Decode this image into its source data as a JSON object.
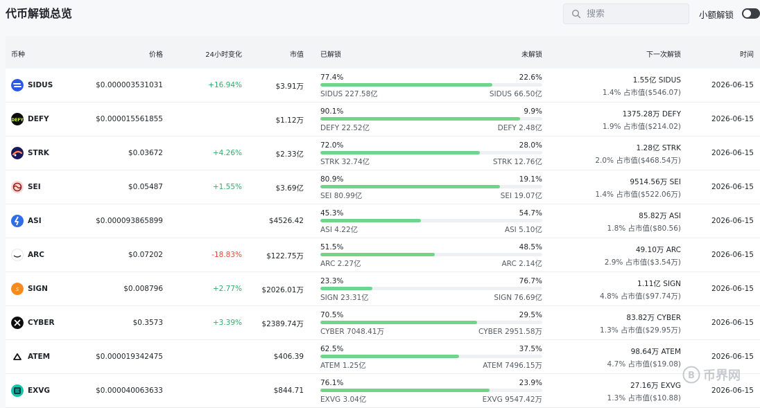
{
  "page": {
    "title": "代币解锁总览"
  },
  "search": {
    "placeholder": "搜索",
    "icon": "search-icon"
  },
  "toggle": {
    "label": "小额解锁",
    "on": false
  },
  "colors": {
    "positive": "#2fae6b",
    "negative": "#e2473f",
    "progress": "#6fd58b",
    "header_bg": "#f3f4f6"
  },
  "table": {
    "headers": {
      "coin": "币种",
      "price": "价格",
      "change": "24小时变化",
      "mcap": "市值",
      "unlocked": "已解锁",
      "locked": "未解锁",
      "next": "下一次解锁",
      "time": "时间"
    },
    "rows": [
      {
        "symbol": "SIDUS",
        "icon": "sidus-logo-icon",
        "price": "$0.000003531031",
        "change": "+16.94%",
        "change_dir": "pos",
        "mcap": "$3.91万",
        "unlocked_pct": "77.4%",
        "unlocked_fraction": 0.774,
        "locked_pct": "22.6%",
        "unlocked_amt": "SIDUS 227.58亿",
        "locked_amt": "SIDUS 66.50亿",
        "next_amt": "1.55亿 SIDUS",
        "next_pct": "1.4% 占市值($546.07)",
        "time": "2026-06-15"
      },
      {
        "symbol": "DEFY",
        "icon": "defy-logo-icon",
        "price": "$0.000015561855",
        "change": "",
        "change_dir": "none",
        "mcap": "$1.12万",
        "unlocked_pct": "90.1%",
        "unlocked_fraction": 0.901,
        "locked_pct": "9.9%",
        "unlocked_amt": "DEFY 22.52亿",
        "locked_amt": "DEFY 2.48亿",
        "next_amt": "1375.28万 DEFY",
        "next_pct": "1.9% 占市值($214.02)",
        "time": "2026-06-15"
      },
      {
        "symbol": "STRK",
        "icon": "strk-logo-icon",
        "price": "$0.03672",
        "change": "+4.26%",
        "change_dir": "pos",
        "mcap": "$2.33亿",
        "unlocked_pct": "72.0%",
        "unlocked_fraction": 0.72,
        "locked_pct": "28.0%",
        "unlocked_amt": "STRK 32.74亿",
        "locked_amt": "STRK 12.76亿",
        "next_amt": "1.28亿 STRK",
        "next_pct": "2.0% 占市值($468.54万)",
        "time": "2026-06-15"
      },
      {
        "symbol": "SEI",
        "icon": "sei-logo-icon",
        "price": "$0.05487",
        "change": "+1.55%",
        "change_dir": "pos",
        "mcap": "$3.69亿",
        "unlocked_pct": "80.9%",
        "unlocked_fraction": 0.809,
        "locked_pct": "19.1%",
        "unlocked_amt": "SEI 80.99亿",
        "locked_amt": "SEI 19.07亿",
        "next_amt": "9514.56万 SEI",
        "next_pct": "1.4% 占市值($522.06万)",
        "time": "2026-06-15"
      },
      {
        "symbol": "ASI",
        "icon": "asi-logo-icon",
        "price": "$0.000093865899",
        "change": "",
        "change_dir": "none",
        "mcap": "$4526.42",
        "unlocked_pct": "45.3%",
        "unlocked_fraction": 0.453,
        "locked_pct": "54.7%",
        "unlocked_amt": "ASI 4.22亿",
        "locked_amt": "ASI 5.10亿",
        "next_amt": "85.82万 ASI",
        "next_pct": "1.8% 占市值($80.56)",
        "time": "2026-06-15"
      },
      {
        "symbol": "ARC",
        "icon": "arc-logo-icon",
        "price": "$0.07202",
        "change": "-18.83%",
        "change_dir": "neg",
        "mcap": "$122.75万",
        "unlocked_pct": "51.5%",
        "unlocked_fraction": 0.515,
        "locked_pct": "48.5%",
        "unlocked_amt": "ARC 2.27亿",
        "locked_amt": "ARC 2.14亿",
        "next_amt": "49.10万 ARC",
        "next_pct": "2.9% 占市值($3.54万)",
        "time": "2026-06-15"
      },
      {
        "symbol": "SIGN",
        "icon": "sign-logo-icon",
        "price": "$0.008796",
        "change": "+2.77%",
        "change_dir": "pos",
        "mcap": "$2026.01万",
        "unlocked_pct": "23.3%",
        "unlocked_fraction": 0.233,
        "locked_pct": "76.7%",
        "unlocked_amt": "SIGN 23.31亿",
        "locked_amt": "SIGN 76.69亿",
        "next_amt": "1.11亿 SIGN",
        "next_pct": "4.8% 占市值($97.74万)",
        "time": "2026-06-15"
      },
      {
        "symbol": "CYBER",
        "icon": "cyber-logo-icon",
        "price": "$0.3573",
        "change": "+3.39%",
        "change_dir": "pos",
        "mcap": "$2389.74万",
        "unlocked_pct": "70.5%",
        "unlocked_fraction": 0.705,
        "locked_pct": "29.5%",
        "unlocked_amt": "CYBER 7048.41万",
        "locked_amt": "CYBER 2951.58万",
        "next_amt": "83.82万 CYBER",
        "next_pct": "1.3% 占市值($29.95万)",
        "time": "2026-06-15"
      },
      {
        "symbol": "ATEM",
        "icon": "atem-logo-icon",
        "price": "$0.000019342475",
        "change": "",
        "change_dir": "none",
        "mcap": "$406.39",
        "unlocked_pct": "62.5%",
        "unlocked_fraction": 0.625,
        "locked_pct": "37.5%",
        "unlocked_amt": "ATEM 1.25亿",
        "locked_amt": "ATEM 7496.15万",
        "next_amt": "98.64万 ATEM",
        "next_pct": "4.7% 占市值($19.08)",
        "time": "2026-06-15"
      },
      {
        "symbol": "EXVG",
        "icon": "exvg-logo-icon",
        "price": "$0.000040063633",
        "change": "",
        "change_dir": "none",
        "mcap": "$844.71",
        "unlocked_pct": "76.1%",
        "unlocked_fraction": 0.761,
        "locked_pct": "23.9%",
        "unlocked_amt": "EXVG 3.04亿",
        "locked_amt": "EXVG 9547.42万",
        "next_amt": "27.16万 EXVG",
        "next_pct": "1.3% 占市值($10.88)",
        "time": "2026-06-15"
      }
    ]
  },
  "watermark": {
    "text": "币界网",
    "icon": "bijie-logo-icon"
  }
}
